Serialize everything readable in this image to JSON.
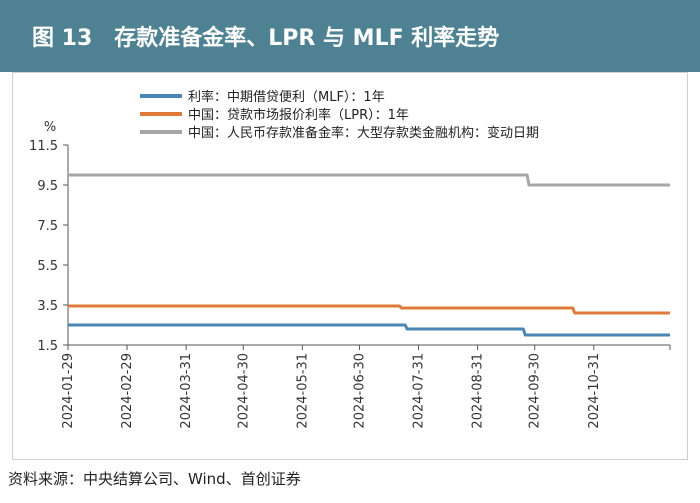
{
  "header": {
    "title": "图 13　存款准备金率、LPR 与 MLF 利率走势"
  },
  "footer": {
    "source": "资料来源：中央结算公司、Wind、首创证券"
  },
  "colors": {
    "header_bg": "#4e8292",
    "mlf": "#4a86b4",
    "lpr": "#e07a3a",
    "rrr": "#a6a6a6"
  },
  "chart_data": {
    "type": "line",
    "ylabel": "%",
    "ylim": [
      1.5,
      11.5
    ],
    "yticks": [
      11.5,
      9.5,
      7.5,
      5.5,
      3.5,
      1.5
    ],
    "yticklabels": [
      "11.5",
      "9.5",
      "7.5",
      "5.5",
      "3.5",
      "1.5"
    ],
    "xlim": [
      "2024-01-29",
      "2024-12-10"
    ],
    "xticks": [
      "2024-01-29",
      "2024-02-29",
      "2024-03-31",
      "2024-04-30",
      "2024-05-31",
      "2024-06-30",
      "2024-07-31",
      "2024-08-31",
      "2024-09-30",
      "2024-10-31"
    ],
    "legend_position": "top",
    "series": [
      {
        "name": "利率：中期借贷便利（MLF）：1年",
        "color": "#4a86b4",
        "points": [
          [
            "2024-01-29",
            2.5
          ],
          [
            "2024-07-24",
            2.5
          ],
          [
            "2024-07-25",
            2.3
          ],
          [
            "2024-09-24",
            2.3
          ],
          [
            "2024-09-25",
            2.0
          ],
          [
            "2024-12-10",
            2.0
          ]
        ]
      },
      {
        "name": "中国：贷款市场报价利率（LPR）：1年",
        "color": "#e07a3a",
        "points": [
          [
            "2024-01-29",
            3.45
          ],
          [
            "2024-07-21",
            3.45
          ],
          [
            "2024-07-22",
            3.35
          ],
          [
            "2024-10-20",
            3.35
          ],
          [
            "2024-10-21",
            3.1
          ],
          [
            "2024-12-10",
            3.1
          ]
        ]
      },
      {
        "name": "中国：人民币存款准备金率：大型存款类金融机构：变动日期",
        "color": "#a6a6a6",
        "points": [
          [
            "2024-01-29",
            10.0
          ],
          [
            "2024-02-04",
            10.0
          ],
          [
            "2024-02-05",
            10.0
          ],
          [
            "2024-09-26",
            10.0
          ],
          [
            "2024-09-27",
            9.5
          ],
          [
            "2024-12-10",
            9.5
          ]
        ]
      }
    ]
  }
}
